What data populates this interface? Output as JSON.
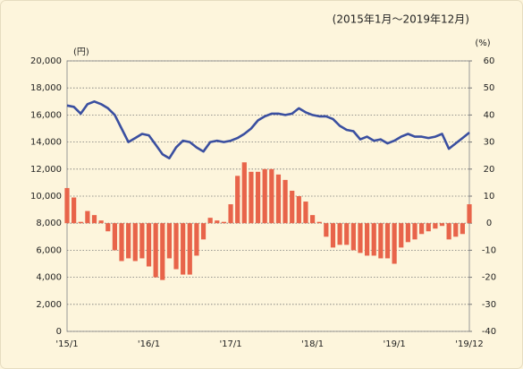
{
  "chart_data": {
    "type": "bar-line",
    "annotation": "(2015年1月～2019年12月)",
    "y_label": "(円)",
    "y2_label": "(%)",
    "categories": [
      "'15/1",
      null,
      null,
      null,
      null,
      null,
      null,
      null,
      null,
      null,
      null,
      null,
      "'16/1",
      null,
      null,
      null,
      null,
      null,
      null,
      null,
      null,
      null,
      null,
      null,
      "'17/1",
      null,
      null,
      null,
      null,
      null,
      null,
      null,
      null,
      null,
      null,
      null,
      "'18/1",
      null,
      null,
      null,
      null,
      null,
      null,
      null,
      null,
      null,
      null,
      null,
      "'19/1",
      null,
      null,
      null,
      null,
      null,
      null,
      null,
      null,
      null,
      null,
      "'19/12"
    ],
    "series": [
      {
        "type": "bar",
        "axis": "y2",
        "color": "#e8644a",
        "values": [
          13,
          9.5,
          0.5,
          4.5,
          3,
          1,
          -3,
          -10,
          -14,
          -13,
          -14,
          -13,
          -16,
          -20,
          -21,
          -13,
          -17,
          -19,
          -19,
          -12,
          -6,
          2,
          1,
          0.5,
          7,
          17.5,
          22.5,
          19,
          19,
          20,
          20,
          18,
          16,
          12,
          10,
          8,
          3,
          0.5,
          -5,
          -9,
          -8,
          -8,
          -10,
          -11,
          -12,
          -12,
          -13,
          -13,
          -15,
          -9,
          -7,
          -6,
          -4,
          -3,
          -2,
          -1,
          -6,
          -5,
          -4,
          7
        ]
      },
      {
        "type": "line",
        "axis": "y",
        "color": "#3a4fa0",
        "values": [
          16700,
          16600,
          16100,
          16800,
          17000,
          16800,
          16500,
          16000,
          15000,
          14000,
          14300,
          14600,
          14500,
          13800,
          13100,
          12800,
          13600,
          14100,
          14000,
          13600,
          13300,
          14000,
          14100,
          14000,
          14100,
          14300,
          14600,
          15000,
          15600,
          15900,
          16100,
          16100,
          16000,
          16100,
          16500,
          16200,
          16000,
          15900,
          15900,
          15700,
          15200,
          14900,
          14800,
          14200,
          14400,
          14100,
          14200,
          13900,
          14100,
          14400,
          14600,
          14400,
          14400,
          14300,
          14400,
          14600,
          13500,
          13900,
          14300,
          14700
        ]
      }
    ],
    "ylim": [
      0,
      20000
    ],
    "yticks": [
      0,
      {
        "value": 2000,
        "label": "2,000"
      },
      {
        "value": 4000,
        "label": "4,000"
      },
      {
        "value": 6000,
        "label": "6,000"
      },
      {
        "value": 8000,
        "label": "8,000"
      },
      {
        "value": 10000,
        "label": "10,000"
      },
      {
        "value": 12000,
        "label": "12,000"
      },
      {
        "value": 14000,
        "label": "14,000"
      },
      {
        "value": 16000,
        "label": "16,000"
      },
      {
        "value": 18000,
        "label": "18,000"
      },
      {
        "value": 20000,
        "label": "20,000"
      }
    ],
    "y2lim": [
      -40,
      60
    ],
    "y2ticks": [
      -40,
      -30,
      -20,
      -10,
      0,
      10,
      20,
      30,
      40,
      50,
      60
    ],
    "grid": true
  }
}
